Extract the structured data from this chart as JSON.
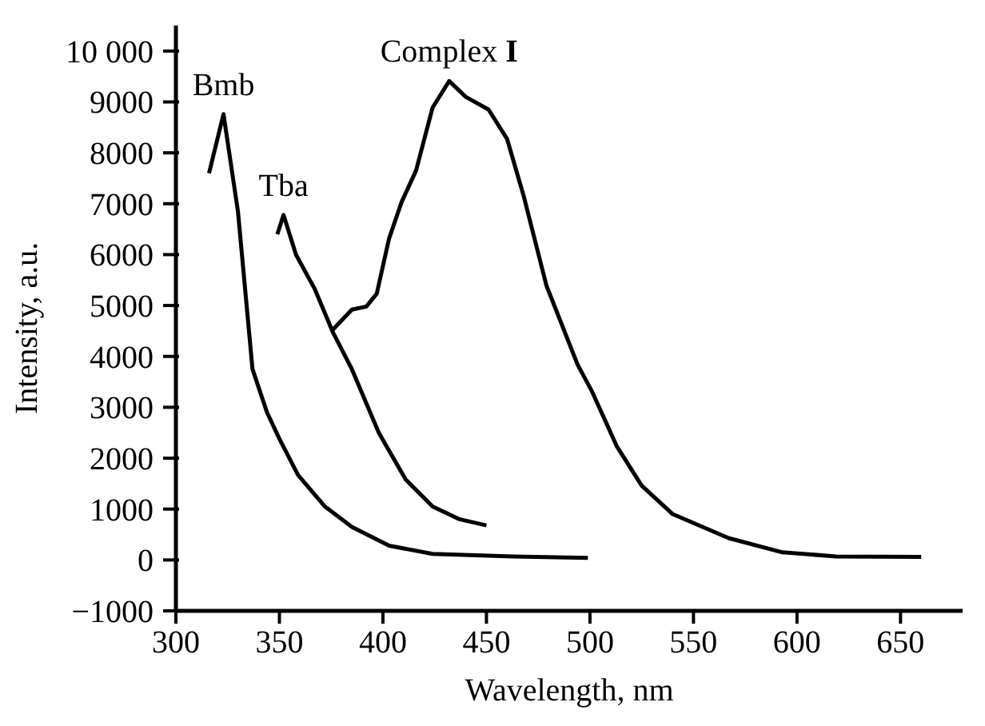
{
  "chart_data": {
    "type": "line",
    "xlabel": "Wavelength, nm",
    "ylabel": "Intensity, a.u.",
    "xlim": [
      300,
      680
    ],
    "xticks": [
      300,
      350,
      400,
      450,
      500,
      550,
      600,
      650
    ],
    "ylim": [
      -1000,
      10500
    ],
    "yticks": [
      {
        "value": -1000,
        "label": "−1000"
      },
      0,
      1000,
      2000,
      3000,
      4000,
      5000,
      6000,
      7000,
      8000,
      9000,
      {
        "value": 10000,
        "label": "10 000"
      }
    ],
    "marker": "none",
    "line_style": "solid",
    "series": [
      {
        "name": "Bmb",
        "color": "#000000",
        "x": [
          316,
          323,
          330,
          337,
          344,
          350,
          359,
          372,
          385,
          403,
          424,
          463,
          499
        ],
        "values": [
          7600,
          8760,
          6840,
          3750,
          2900,
          2380,
          1670,
          1050,
          650,
          280,
          120,
          70,
          40
        ]
      },
      {
        "name": "Tba",
        "color": "#000000",
        "x": [
          349,
          352,
          358,
          367,
          376,
          385,
          398,
          411,
          424,
          437,
          450
        ],
        "values": [
          6400,
          6780,
          6000,
          5330,
          4460,
          3750,
          2500,
          1580,
          1050,
          800,
          680
        ]
      },
      {
        "name": "Complex I",
        "color": "#000000",
        "x": [
          375,
          385,
          392,
          397,
          403,
          409,
          416,
          424,
          432,
          440,
          451,
          460,
          468,
          479,
          494,
          501,
          513,
          525,
          540,
          567,
          593,
          619,
          660
        ],
        "values": [
          4490,
          4920,
          4980,
          5230,
          6320,
          7030,
          7650,
          8890,
          9410,
          9100,
          8850,
          8270,
          7150,
          5390,
          3840,
          3310,
          2230,
          1460,
          900,
          430,
          150,
          70,
          60
        ]
      }
    ]
  }
}
